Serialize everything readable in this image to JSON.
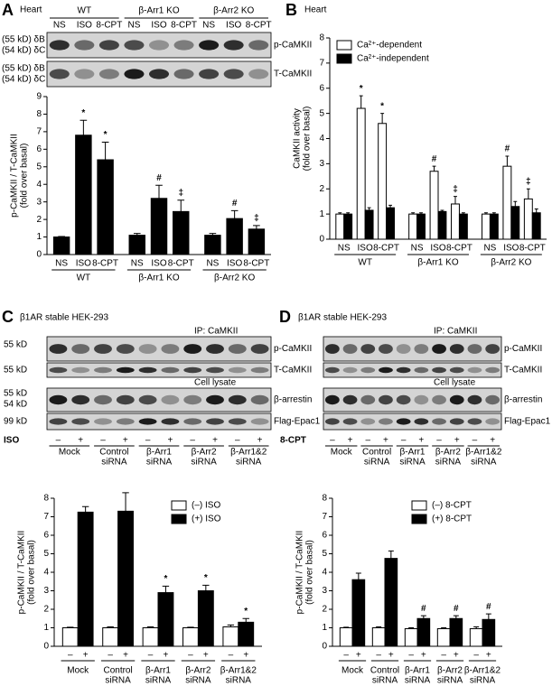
{
  "chart_data": [
    {
      "type": "bar",
      "panel": "A",
      "title": "Heart",
      "blot": {
        "left": [
          "(55 kD) δB",
          "(54 kD) δC",
          "(55 kD) δB",
          "(54 kD) δC"
        ],
        "right": [
          "p-CaMKII",
          "T-CaMKII"
        ]
      },
      "ylabel": [
        "p-CaMKII / T-CaMKII",
        "(fold over basal)"
      ],
      "groups": [
        "WT",
        "β-Arr1 KO",
        "β-Arr2 KO"
      ],
      "categories": [
        "NS",
        "ISO",
        "8-CPT",
        "NS",
        "ISO",
        "8-CPT",
        "NS",
        "ISO",
        "8-CPT"
      ],
      "values": [
        1,
        6.8,
        5.4,
        1.1,
        3.2,
        2.45,
        1.1,
        2.05,
        1.45
      ],
      "errors": [
        0.03,
        0.85,
        1.0,
        0.1,
        0.75,
        0.65,
        0.1,
        0.45,
        0.2
      ],
      "markers": [
        null,
        "*",
        "*",
        null,
        "#",
        "‡",
        null,
        "#",
        "‡"
      ],
      "color": "#000000",
      "ylim": [
        0,
        9
      ],
      "yticks": [
        0,
        1,
        2,
        3,
        4,
        5,
        6,
        7,
        8,
        9
      ]
    },
    {
      "type": "bar",
      "panel": "B",
      "title": "Heart",
      "ylabel": [
        "CaMKII activity",
        "(fold over basal)"
      ],
      "groups": [
        "WT",
        "β-Arr1 KO",
        "β-Arr2 KO"
      ],
      "categories": [
        "NS",
        "ISO",
        "8-CPT",
        "NS",
        "ISO",
        "8-CPT",
        "NS",
        "ISO",
        "8-CPT"
      ],
      "series": [
        {
          "name": "Ca²⁺-dependent",
          "color": "#ffffff",
          "values": [
            1,
            5.2,
            4.6,
            1.0,
            2.7,
            1.4,
            1.0,
            2.9,
            1.6
          ],
          "errors": [
            0.05,
            0.5,
            0.4,
            0.05,
            0.2,
            0.3,
            0.05,
            0.4,
            0.4
          ],
          "markers": [
            null,
            "*",
            "*",
            null,
            "#",
            "‡",
            null,
            "#",
            "‡"
          ]
        },
        {
          "name": "Ca²⁺-independent",
          "color": "#000000",
          "values": [
            1,
            1.15,
            1.25,
            1.0,
            1.1,
            1.0,
            1.0,
            1.3,
            1.05
          ],
          "errors": [
            0.05,
            0.1,
            0.1,
            0.05,
            0.05,
            0.05,
            0.05,
            0.2,
            0.15
          ]
        }
      ],
      "legend": "upper left",
      "ylim": [
        0,
        8
      ],
      "yticks": [
        0,
        1,
        2,
        3,
        4,
        5,
        6,
        7,
        8
      ]
    },
    {
      "type": "bar",
      "panel": "C",
      "title": "β1AR stable HEK-293",
      "blot": {
        "left": [
          "55 kD",
          "55 kD",
          "55 kD",
          "54 kD",
          "99 kD"
        ],
        "right": [
          "p-CaMKII",
          "T-CaMKII",
          "β-arrestin",
          "Flag-Epac1"
        ],
        "notes": [
          "IP: CaMKII",
          "Cell lysate"
        ]
      },
      "treatment": "ISO",
      "ylabel": [
        "p-CaMKII / T-CaMKII",
        "(fold over basal)"
      ],
      "categories": [
        [
          "Mock"
        ],
        [
          "Control",
          "siRNA"
        ],
        [
          "β-Arr1",
          "siRNA"
        ],
        [
          "β-Arr2",
          "siRNA"
        ],
        [
          "β-Arr1&2",
          "siRNA"
        ]
      ],
      "bar_labels": [
        "–",
        "+"
      ],
      "series": [
        {
          "name": "(–) ISO",
          "color": "#ffffff",
          "values": [
            1,
            1.0,
            1.0,
            1.0,
            1.05
          ],
          "errors": [
            0.03,
            0.05,
            0.05,
            0.03,
            0.1
          ]
        },
        {
          "name": "(+) ISO",
          "color": "#000000",
          "values": [
            7.25,
            7.3,
            2.9,
            3.0,
            1.3
          ],
          "errors": [
            0.3,
            1.0,
            0.35,
            0.3,
            0.2
          ],
          "markers": [
            null,
            null,
            "*",
            "*",
            "*"
          ]
        }
      ],
      "legend": "upper right",
      "ylim": [
        0,
        8
      ],
      "yticks": [
        0,
        1,
        2,
        3,
        4,
        5,
        6,
        7,
        8
      ]
    },
    {
      "type": "bar",
      "panel": "D",
      "title": "β1AR stable HEK-293",
      "blot": {
        "right": [
          "p-CaMKII",
          "T-CaMKII",
          "β-arrestin",
          "Flag-Epac1"
        ],
        "notes": [
          "IP: CaMKII",
          "Cell lysate"
        ]
      },
      "treatment": "8-CPT",
      "ylabel": [
        "p-CaMKII / T-CaMKII",
        "(fold over basal)"
      ],
      "categories": [
        [
          "Mock"
        ],
        [
          "Control",
          "siRNA"
        ],
        [
          "β-Arr1",
          "siRNA"
        ],
        [
          "β-Arr2",
          "siRNA"
        ],
        [
          "β-Arr1&2",
          "siRNA"
        ]
      ],
      "bar_labels": [
        "–",
        "+"
      ],
      "series": [
        {
          "name": "(–) 8-CPT",
          "color": "#ffffff",
          "values": [
            1,
            1.0,
            0.95,
            0.95,
            0.95
          ],
          "errors": [
            0.03,
            0.05,
            0.05,
            0.05,
            0.1
          ]
        },
        {
          "name": "(+) 8-CPT",
          "color": "#000000",
          "values": [
            3.6,
            4.75,
            1.5,
            1.5,
            1.45
          ],
          "errors": [
            0.35,
            0.4,
            0.15,
            0.15,
            0.3
          ],
          "markers": [
            null,
            null,
            "#",
            "#",
            "#"
          ]
        }
      ],
      "legend": "upper right",
      "ylim": [
        0,
        8
      ],
      "yticks": [
        0,
        1,
        2,
        3,
        4,
        5,
        6,
        7,
        8
      ]
    }
  ]
}
